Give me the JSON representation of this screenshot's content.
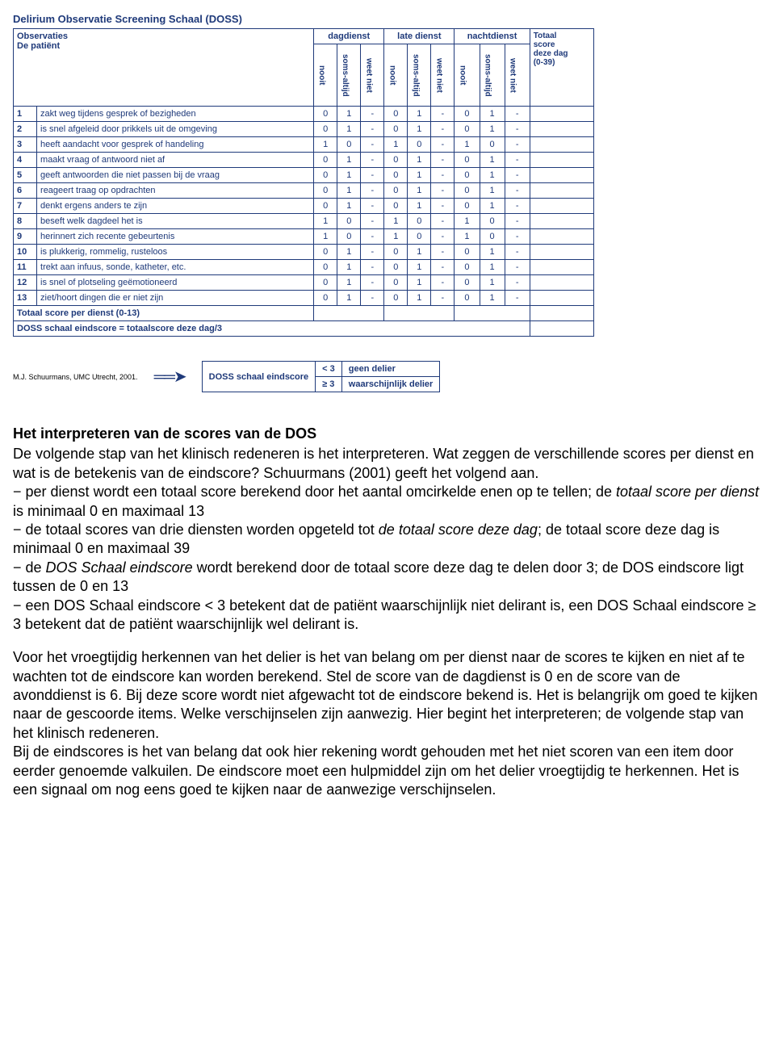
{
  "colors": {
    "border": "#1f3a7a",
    "title": "#1f3a7a",
    "text": "#000000",
    "body": "#000000"
  },
  "table": {
    "title": "Delirium Observatie Screening Schaal (DOSS)",
    "obs_header_1": "Observaties",
    "obs_header_2": "De patiënt",
    "shifts": [
      "dagdienst",
      "late dienst",
      "nachtdienst"
    ],
    "subcols": [
      "nooit",
      "soms-altijd",
      "weet niet"
    ],
    "totcol_1": "Totaal",
    "totcol_2": "score",
    "totcol_3": "deze dag",
    "totcol_4": "(0-39)",
    "rows": [
      {
        "n": "1",
        "desc": "zakt weg tijdens gesprek of bezigheden",
        "v": [
          "0",
          "1",
          "-",
          "0",
          "1",
          "-",
          "0",
          "1",
          "-"
        ]
      },
      {
        "n": "2",
        "desc": "is snel afgeleid door prikkels uit de omgeving",
        "v": [
          "0",
          "1",
          "-",
          "0",
          "1",
          "-",
          "0",
          "1",
          "-"
        ]
      },
      {
        "n": "3",
        "desc": "heeft aandacht voor gesprek of handeling",
        "v": [
          "1",
          "0",
          "-",
          "1",
          "0",
          "-",
          "1",
          "0",
          "-"
        ]
      },
      {
        "n": "4",
        "desc": "maakt vraag of antwoord niet af",
        "v": [
          "0",
          "1",
          "-",
          "0",
          "1",
          "-",
          "0",
          "1",
          "-"
        ]
      },
      {
        "n": "5",
        "desc": "geeft antwoorden die niet passen bij de vraag",
        "v": [
          "0",
          "1",
          "-",
          "0",
          "1",
          "-",
          "0",
          "1",
          "-"
        ]
      },
      {
        "n": "6",
        "desc": "reageert traag op opdrachten",
        "v": [
          "0",
          "1",
          "-",
          "0",
          "1",
          "-",
          "0",
          "1",
          "-"
        ]
      },
      {
        "n": "7",
        "desc": "denkt ergens anders te zijn",
        "v": [
          "0",
          "1",
          "-",
          "0",
          "1",
          "-",
          "0",
          "1",
          "-"
        ]
      },
      {
        "n": "8",
        "desc": "beseft welk dagdeel het is",
        "v": [
          "1",
          "0",
          "-",
          "1",
          "0",
          "-",
          "1",
          "0",
          "-"
        ]
      },
      {
        "n": "9",
        "desc": "herinnert zich recente gebeurtenis",
        "v": [
          "1",
          "0",
          "-",
          "1",
          "0",
          "-",
          "1",
          "0",
          "-"
        ]
      },
      {
        "n": "10",
        "desc": "is plukkerig, rommelig, rusteloos",
        "v": [
          "0",
          "1",
          "-",
          "0",
          "1",
          "-",
          "0",
          "1",
          "-"
        ]
      },
      {
        "n": "11",
        "desc": "trekt aan infuus, sonde, katheter, etc.",
        "v": [
          "0",
          "1",
          "-",
          "0",
          "1",
          "-",
          "0",
          "1",
          "-"
        ]
      },
      {
        "n": "12",
        "desc": "is snel of plotseling geëmotioneerd",
        "v": [
          "0",
          "1",
          "-",
          "0",
          "1",
          "-",
          "0",
          "1",
          "-"
        ]
      },
      {
        "n": "13",
        "desc": "ziet/hoort dingen die er niet zijn",
        "v": [
          "0",
          "1",
          "-",
          "0",
          "1",
          "-",
          "0",
          "1",
          "-"
        ]
      }
    ],
    "footer1": "Totaal score per dienst (0-13)",
    "footer2": "DOSS schaal eindscore = totaalscore deze dag/3"
  },
  "attribution": "M.J. Schuurmans, UMC Utrecht, 2001.",
  "legend": {
    "label": "DOSS schaal eindscore",
    "r1c1": "< 3",
    "r1c2": "geen delier",
    "r2c1": "≥ 3",
    "r2c2": "waarschijnlijk delier"
  },
  "body": {
    "heading": "Het interpreteren van de scores van de DOS",
    "p1a": "De volgende stap van het klinisch redeneren is het interpreteren. Wat zeggen de verschillende scores per dienst en wat is de betekenis van de eindscore? Schuurmans (2001) geeft het volgend aan.",
    "b1a": "− per dienst wordt een totaal score berekend door het aantal omcirkelde enen op te tellen; de ",
    "b1i": "totaal score per dienst",
    "b1b": " is minimaal 0 en maximaal 13",
    "b2a": "− de totaal scores van drie diensten worden opgeteld tot ",
    "b2i": "de totaal score deze dag",
    "b2b": "; de totaal score deze dag is minimaal 0 en maximaal 39",
    "b3a": "− de ",
    "b3i": "DOS Schaal eindscore",
    "b3b": " wordt berekend door de totaal score deze dag te delen door 3; de DOS eindscore ligt tussen de 0 en 13",
    "b4": "− een DOS Schaal eindscore < 3 betekent dat de patiënt waarschijnlijk niet delirant is, een DOS Schaal eindscore ≥ 3 betekent dat de patiënt waarschijnlijk wel delirant is.",
    "p2": "Voor het vroegtijdig herkennen van het delier is het van belang om per dienst naar de scores te kijken en niet af te wachten tot de eindscore kan worden berekend. Stel de score van de dagdienst is 0 en de score van de avonddienst is 6. Bij deze score wordt niet afgewacht tot de eindscore bekend is. Het is belangrijk om goed te kijken naar de gescoorde items. Welke verschijnselen zijn aanwezig. Hier begint het interpreteren; de volgende stap van het klinisch redeneren.",
    "p3": "Bij de eindscores is het van belang dat ook hier rekening wordt gehouden met het niet scoren van een item door eerder genoemde valkuilen. De eindscore moet een hulpmiddel zijn om het delier vroegtijdig te herkennen. Het is een signaal om nog eens goed te kijken naar de aanwezige verschijnselen."
  }
}
